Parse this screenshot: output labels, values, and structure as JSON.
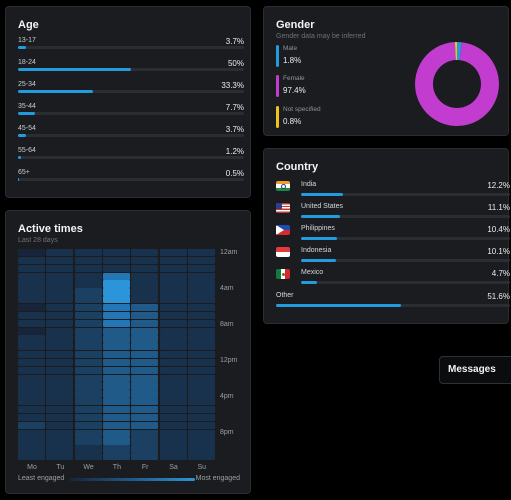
{
  "age": {
    "title": "Age",
    "rows": [
      {
        "label": "13-17",
        "pct": "3.7%",
        "value": 3.7
      },
      {
        "label": "18-24",
        "pct": "50%",
        "value": 50
      },
      {
        "label": "25-34",
        "pct": "33.3%",
        "value": 33.3
      },
      {
        "label": "35-44",
        "pct": "7.7%",
        "value": 7.7
      },
      {
        "label": "45-54",
        "pct": "3.7%",
        "value": 3.7
      },
      {
        "label": "55-64",
        "pct": "1.2%",
        "value": 1.2
      },
      {
        "label": "65+",
        "pct": "0.5%",
        "value": 0.5
      }
    ]
  },
  "gender": {
    "title": "Gender",
    "subtitle": "Gender data may be inferred",
    "items": [
      {
        "label": "Male",
        "pct": "1.8%",
        "value": 1.8,
        "color": "#229bdf"
      },
      {
        "label": "Female",
        "pct": "97.4%",
        "value": 97.4,
        "color": "#c13ccf"
      },
      {
        "label": "Not specified",
        "pct": "0.8%",
        "value": 0.8,
        "color": "#f2c218"
      }
    ]
  },
  "country": {
    "title": "Country",
    "rows": [
      {
        "name": "India",
        "pct": "12.2%",
        "value": 12.2,
        "flag": "india"
      },
      {
        "name": "United States",
        "pct": "11.1%",
        "value": 11.1,
        "flag": "us"
      },
      {
        "name": "Philippines",
        "pct": "10.4%",
        "value": 10.4,
        "flag": "philippines"
      },
      {
        "name": "Indonesia",
        "pct": "10.1%",
        "value": 10.1,
        "flag": "indonesia"
      },
      {
        "name": "Mexico",
        "pct": "4.7%",
        "value": 4.7,
        "flag": "mexico"
      }
    ],
    "other": {
      "name": "Other",
      "pct": "51.6%",
      "value": 51.6
    }
  },
  "active_times": {
    "title": "Active times",
    "subtitle": "Last 28 days",
    "hours": [
      "12am",
      "4am",
      "8am",
      "12pm",
      "4pm",
      "8pm"
    ],
    "days": [
      "Mo",
      "Tu",
      "We",
      "Th",
      "Fr",
      "Sa",
      "Su"
    ],
    "legend": {
      "least": "Least engaged",
      "most": "Most engaged"
    },
    "colors": [
      "#17243a",
      "#18314d",
      "#1b4061",
      "#1f5a89",
      "#2477b6",
      "#2a95d8"
    ],
    "levels": [
      [
        0,
        1,
        1,
        1,
        1,
        1,
        1,
        0,
        1,
        1,
        0,
        1,
        1,
        1,
        1,
        1,
        1,
        1,
        1,
        1,
        1,
        1,
        2,
        1,
        1,
        1,
        1
      ],
      [
        1,
        1,
        1,
        1,
        1,
        1,
        1,
        1,
        1,
        1,
        1,
        1,
        1,
        1,
        1,
        1,
        1,
        1,
        1,
        1,
        1,
        1,
        1,
        1,
        1,
        1,
        1
      ],
      [
        1,
        1,
        1,
        1,
        1,
        2,
        2,
        2,
        2,
        2,
        2,
        2,
        2,
        2,
        2,
        2,
        2,
        2,
        2,
        2,
        2,
        2,
        2,
        2,
        2,
        1,
        1
      ],
      [
        1,
        1,
        1,
        4,
        5,
        5,
        5,
        4,
        4,
        4,
        3,
        3,
        3,
        3,
        3,
        3,
        3,
        3,
        3,
        3,
        3,
        3,
        3,
        3,
        3,
        2,
        2
      ],
      [
        1,
        1,
        1,
        1,
        1,
        1,
        1,
        3,
        3,
        3,
        3,
        3,
        3,
        3,
        3,
        3,
        3,
        3,
        3,
        3,
        3,
        3,
        3,
        2,
        2,
        2,
        2
      ],
      [
        1,
        1,
        1,
        1,
        1,
        1,
        1,
        1,
        1,
        1,
        1,
        1,
        1,
        1,
        1,
        1,
        1,
        1,
        1,
        1,
        1,
        1,
        1,
        1,
        1,
        1,
        1
      ],
      [
        1,
        1,
        1,
        1,
        1,
        1,
        1,
        1,
        1,
        1,
        1,
        1,
        1,
        1,
        1,
        1,
        1,
        1,
        1,
        1,
        1,
        1,
        1,
        1,
        1,
        1,
        1
      ]
    ]
  },
  "messages": {
    "label": "Messages"
  }
}
